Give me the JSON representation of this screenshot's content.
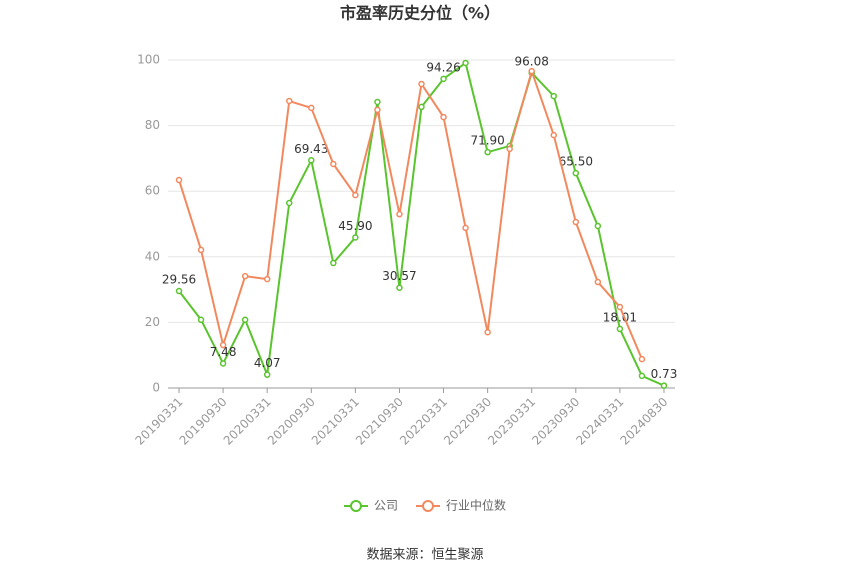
{
  "chart_data": {
    "type": "line",
    "title": "市盈率历史分位（%）",
    "categories": [
      "20190331",
      null,
      "20190930",
      null,
      "20200331",
      null,
      "20200930",
      null,
      "20210331",
      null,
      "20210930",
      null,
      "20220331",
      null,
      "20220930",
      null,
      "20230331",
      null,
      "20230930",
      null,
      "20240331",
      null,
      "20240830"
    ],
    "series": [
      {
        "name": "公司",
        "color": "#5ac42e",
        "values": [
          29.56,
          20.8,
          7.48,
          20.8,
          4.07,
          56.4,
          69.43,
          38.1,
          45.9,
          87.2,
          30.57,
          85.7,
          94.26,
          99.1,
          71.9,
          73.8,
          96.08,
          89.0,
          65.5,
          49.4,
          18.01,
          3.7,
          0.73
        ],
        "value_labels": [
          "29.56",
          null,
          "7.48",
          null,
          "4.07",
          null,
          "69.43",
          null,
          "45.90",
          null,
          "30.57",
          null,
          "94.26",
          null,
          "71.90",
          null,
          "96.08",
          null,
          "65.50",
          null,
          "18.01",
          null,
          "0.73"
        ]
      },
      {
        "name": "行业中位数",
        "color": "#f2895e",
        "values": [
          63.4,
          42.1,
          13.1,
          34.1,
          33.2,
          87.5,
          85.4,
          68.3,
          58.8,
          84.8,
          53.0,
          92.7,
          82.6,
          48.8,
          17.0,
          72.9,
          96.6,
          77.1,
          50.6,
          32.3,
          24.7,
          8.8,
          null
        ]
      }
    ],
    "ylim": [
      0,
      100
    ],
    "yticks": [
      0,
      20,
      40,
      60,
      80,
      100
    ],
    "grid": true,
    "source": "数据来源：恒生聚源"
  }
}
